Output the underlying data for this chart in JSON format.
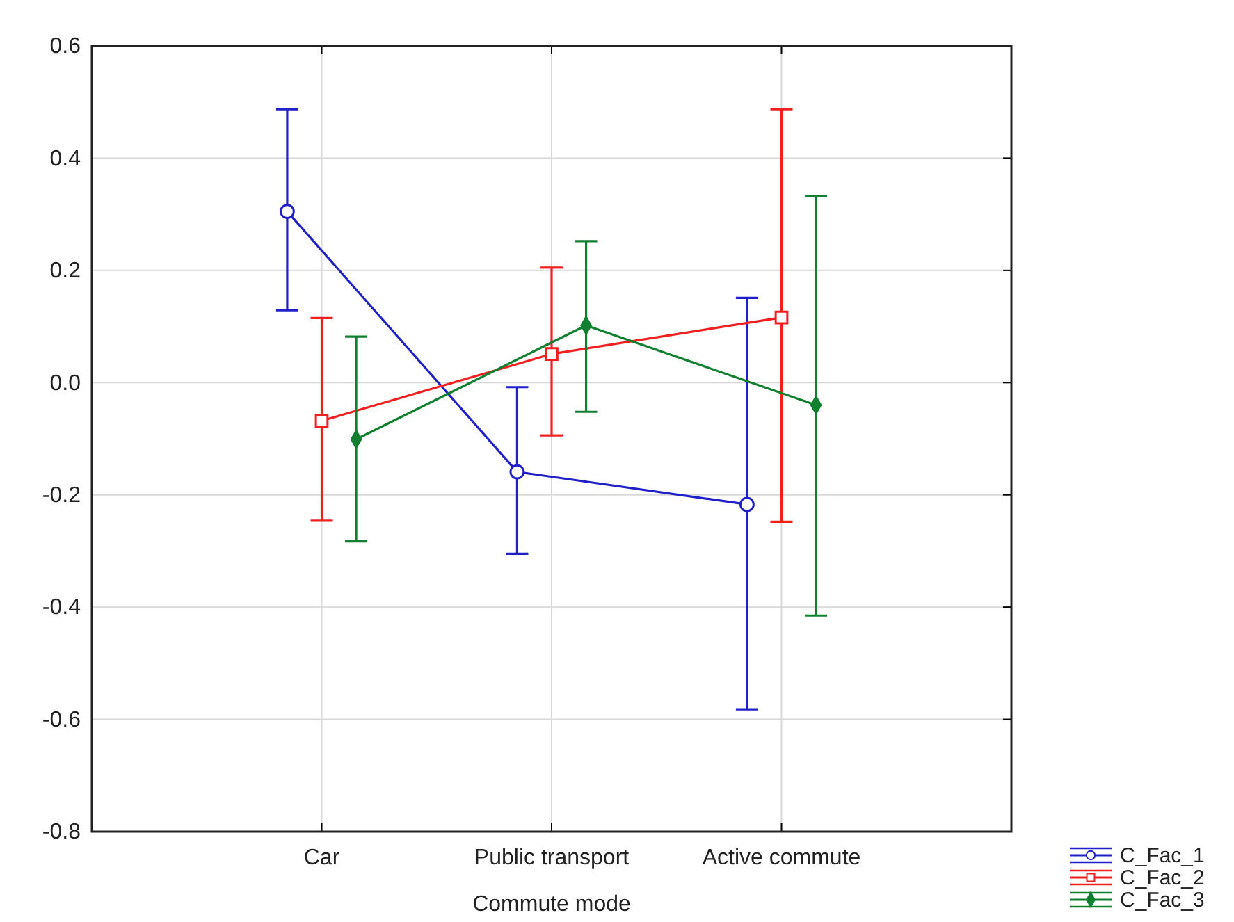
{
  "chart_data": {
    "type": "line",
    "xlabel": "Commute mode",
    "categories": [
      "Car",
      "Public transport",
      "Active commute"
    ],
    "series": [
      {
        "name": "C_Fac_1",
        "color": "#2020c8",
        "marker": "circle",
        "values": [
          0.305,
          -0.159,
          -0.217
        ],
        "errors": [
          [
            0.129,
            0.487
          ],
          [
            -0.305,
            -0.008
          ],
          [
            -0.582,
            0.151
          ]
        ]
      },
      {
        "name": "C_Fac_2",
        "color": "#f02020",
        "marker": "square",
        "values": [
          -0.068,
          0.051,
          0.116
        ],
        "errors": [
          [
            -0.246,
            0.115
          ],
          [
            -0.094,
            0.205
          ],
          [
            -0.248,
            0.487
          ]
        ]
      },
      {
        "name": "C_Fac_3",
        "color": "#108030",
        "marker": "diamond",
        "values": [
          -0.101,
          0.102,
          -0.04
        ],
        "errors": [
          [
            -0.283,
            0.082
          ],
          [
            -0.052,
            0.252
          ],
          [
            -0.415,
            0.333
          ]
        ]
      }
    ],
    "ylim": [
      -0.8,
      0.6
    ],
    "yticks": [
      {
        "value": -0.8,
        "label": "-0.8"
      },
      {
        "value": -0.6,
        "label": "-0.6"
      },
      {
        "value": -0.4,
        "label": "-0.4"
      },
      {
        "value": -0.2,
        "label": "-0.2"
      },
      {
        "value": 0,
        "label": "0.0"
      },
      {
        "value": 0.2,
        "label": "0.2"
      },
      {
        "value": 0.4,
        "label": "0.4"
      },
      {
        "value": 0.6,
        "label": "0.6"
      }
    ],
    "grid": true,
    "legend": "bottom right"
  }
}
